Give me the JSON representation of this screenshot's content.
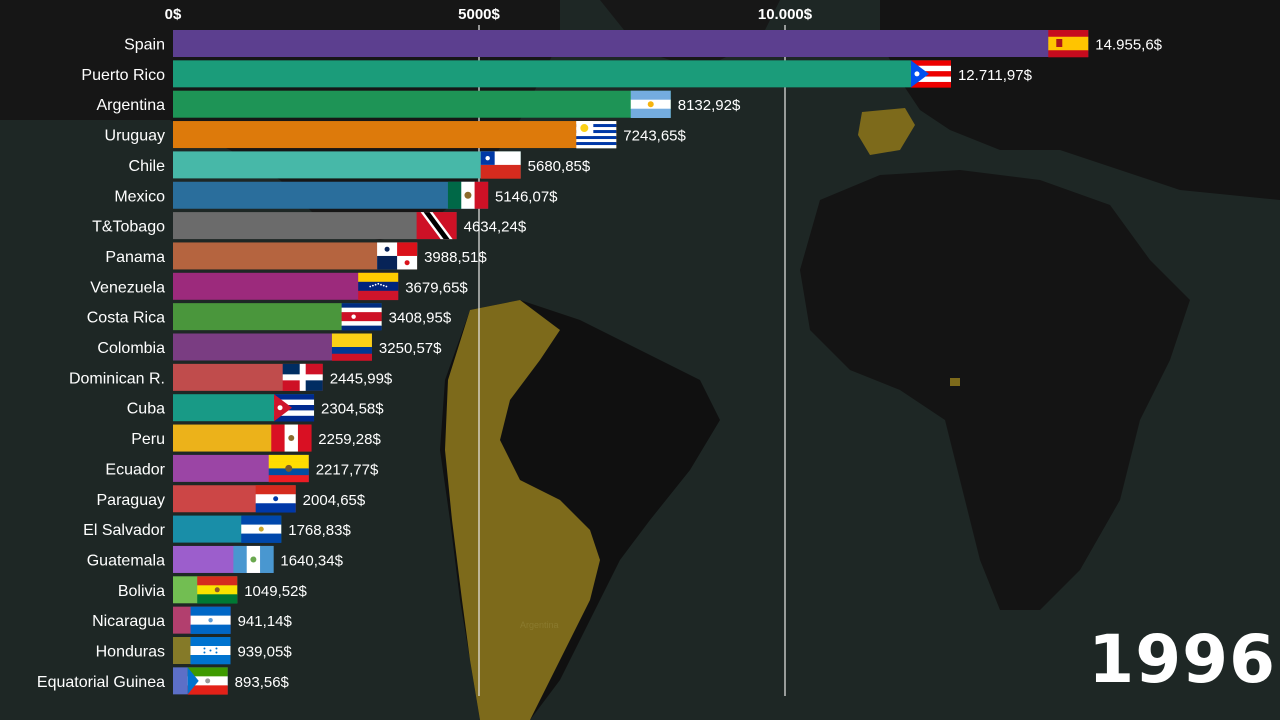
{
  "chart_data": {
    "type": "bar",
    "orientation": "horizontal",
    "title": "",
    "xlabel": "",
    "ylabel": "",
    "xlim": [
      0,
      15000
    ],
    "x_ticks": [
      {
        "value": 0,
        "label": "0$"
      },
      {
        "value": 5000,
        "label": "5000$"
      },
      {
        "value": 10000,
        "label": "10.000$"
      }
    ],
    "grid": true,
    "legend": "none",
    "categories": [
      "Spain",
      "Puerto Rico",
      "Argentina",
      "Uruguay",
      "Chile",
      "Mexico",
      "T&Tobago",
      "Panama",
      "Venezuela",
      "Costa Rica",
      "Colombia",
      "Dominican R.",
      "Cuba",
      "Peru",
      "Ecuador",
      "Paraguay",
      "El Salvador",
      "Guatemala",
      "Bolivia",
      "Nicaragua",
      "Honduras",
      "Equatorial Guinea"
    ],
    "values": [
      14955.6,
      12711.97,
      8132.92,
      7243.65,
      5680.85,
      5146.07,
      4634.24,
      3988.51,
      3679.65,
      3408.95,
      3250.57,
      2445.99,
      2304.58,
      2259.28,
      2217.77,
      2004.65,
      1768.83,
      1640.34,
      1049.52,
      941.14,
      939.05,
      893.56
    ],
    "value_labels": [
      "14.955,6$",
      "12.711,97$",
      "8132,92$",
      "7243,65$",
      "5680,85$",
      "5146,07$",
      "4634,24$",
      "3988,51$",
      "3679,65$",
      "3408,95$",
      "3250,57$",
      "2445,99$",
      "2304,58$",
      "2259,28$",
      "2217,77$",
      "2004,65$",
      "1768,83$",
      "1640,34$",
      "1049,52$",
      "941,14$",
      "939,05$",
      "893,56$"
    ],
    "bar_colors": [
      "#5c3f8f",
      "#1b9c7a",
      "#1e9456",
      "#dd7a0b",
      "#47b8a8",
      "#2a6e9c",
      "#6b6b6b",
      "#b5643f",
      "#9c2a7c",
      "#4a963c",
      "#7a3d82",
      "#c04c4c",
      "#189a86",
      "#ecb21a",
      "#9b45a5",
      "#cc4646",
      "#198ea8",
      "#9c5ecc",
      "#72be52",
      "#b23f6e",
      "#857a28",
      "#5c6fc7"
    ],
    "flags": [
      "spain-flag",
      "puerto-rico-flag",
      "argentina-flag",
      "uruguay-flag",
      "chile-flag",
      "mexico-flag",
      "trinidad-tobago-flag",
      "panama-flag",
      "venezuela-flag",
      "costa-rica-flag",
      "colombia-flag",
      "dominican-republic-flag",
      "cuba-flag",
      "peru-flag",
      "ecuador-flag",
      "paraguay-flag",
      "el-salvador-flag",
      "guatemala-flag",
      "bolivia-flag",
      "nicaragua-flag",
      "honduras-flag",
      "equatorial-guinea-flag"
    ]
  },
  "year_label": "1996",
  "map_label": "Argentina",
  "colors": {
    "background": "#1b2322",
    "land_dark": "#141414",
    "land_highlight": "#7d6a1b",
    "gridline": "#e8e8e8",
    "text": "#ffffff"
  }
}
